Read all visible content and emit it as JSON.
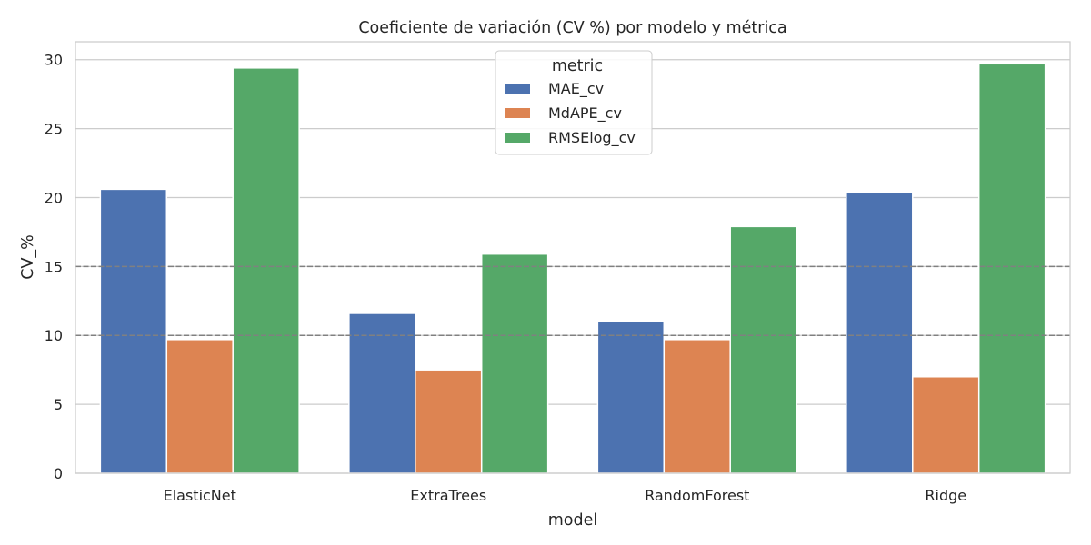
{
  "chart_data": {
    "type": "bar",
    "title": "Coeficiente de variación (CV %) por modelo y métrica",
    "xlabel": "model",
    "ylabel": "CV_%",
    "categories": [
      "ElasticNet",
      "ExtraTrees",
      "RandomForest",
      "Ridge"
    ],
    "series": [
      {
        "name": "MAE_cv",
        "color": "#4c72b0",
        "values": [
          20.6,
          11.6,
          11.0,
          20.4
        ]
      },
      {
        "name": "MdAPE_cv",
        "color": "#dd8452",
        "values": [
          9.7,
          7.5,
          9.7,
          7.0
        ]
      },
      {
        "name": "RMSElog_cv",
        "color": "#55a868",
        "values": [
          29.4,
          15.9,
          17.9,
          29.7
        ]
      }
    ],
    "ylim": [
      0,
      31.3
    ],
    "yticks": [
      0,
      5,
      10,
      15,
      20,
      25,
      30
    ],
    "reference_lines": [
      10,
      15
    ],
    "grid": true,
    "legend": {
      "title": "metric",
      "placement": "top-center"
    }
  }
}
